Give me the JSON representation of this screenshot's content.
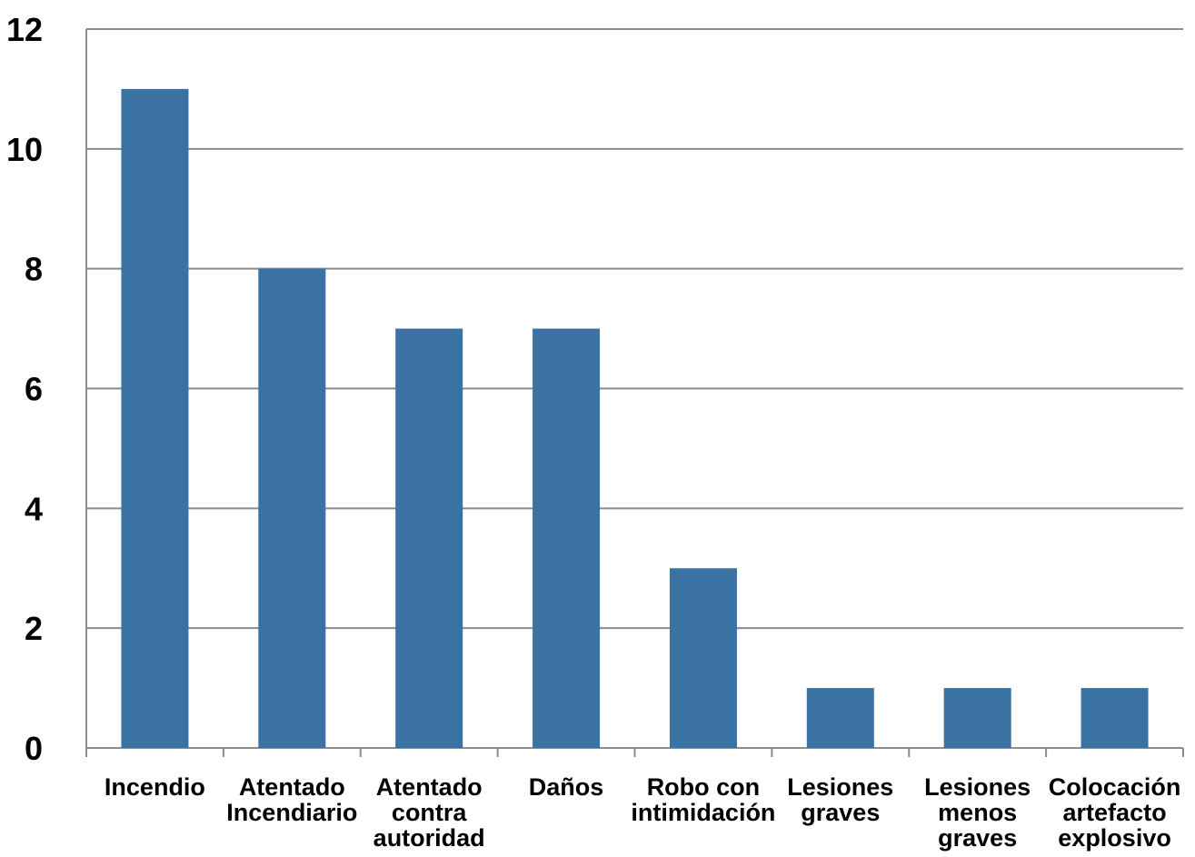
{
  "chart_data": {
    "type": "bar",
    "title": "",
    "xlabel": "",
    "ylabel": "",
    "categories": [
      "Incendio",
      "Atentado Incendiario",
      "Atentado contra autoridad",
      "Daños",
      "Robo con intimidación",
      "Lesiones graves",
      "Lesiones menos graves",
      "Colocación artefacto explosivo"
    ],
    "category_lines": [
      [
        "Incendio"
      ],
      [
        "Atentado",
        "Incendiario"
      ],
      [
        "Atentado",
        "contra",
        "autoridad"
      ],
      [
        "Daños"
      ],
      [
        "Robo con",
        "intimidación"
      ],
      [
        "Lesiones",
        "graves"
      ],
      [
        "Lesiones",
        "menos",
        "graves"
      ],
      [
        "Colocación",
        "artefacto",
        "explosivo"
      ]
    ],
    "values": [
      11,
      8,
      7,
      7,
      3,
      1,
      1,
      1
    ],
    "ylim": [
      0,
      12
    ],
    "yticks": [
      "0",
      "2",
      "4",
      "6",
      "8",
      "10",
      "12"
    ],
    "grid": true,
    "legend": "none",
    "colors": {
      "bar": "#3a72a4",
      "grid": "#8c8c8c",
      "axis": "#8c8c8c"
    }
  }
}
